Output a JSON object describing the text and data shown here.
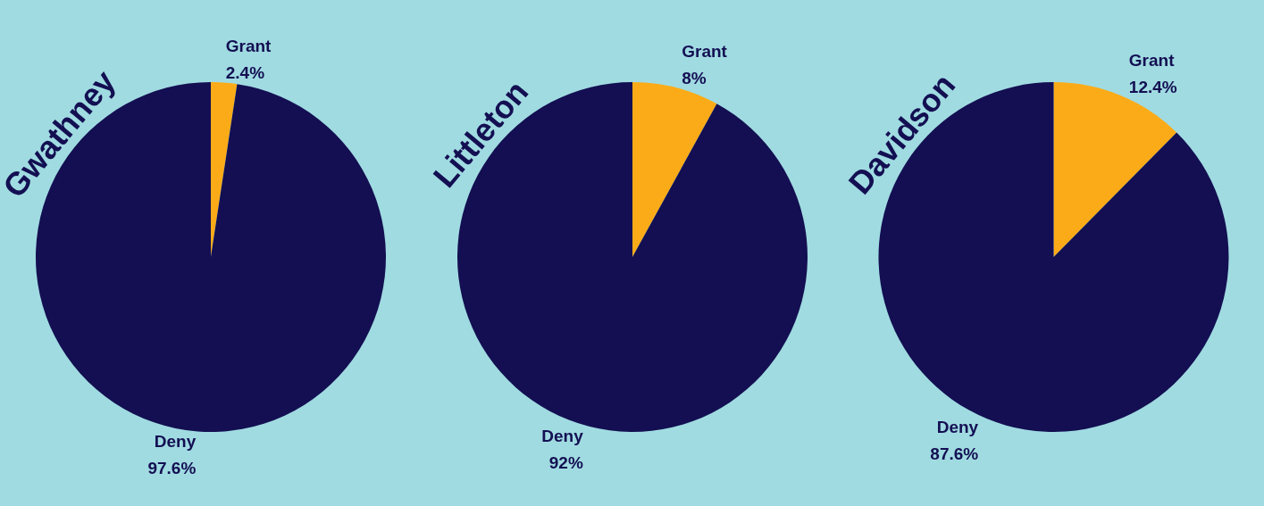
{
  "chart_data": [
    {
      "type": "pie",
      "title": "Gwathney",
      "categories": [
        "Grant",
        "Deny"
      ],
      "values": [
        2.4,
        97.6
      ],
      "colors": [
        "#fbab18",
        "#130f52"
      ],
      "value_labels": [
        "2.4%",
        "97.6%"
      ]
    },
    {
      "type": "pie",
      "title": "Littleton",
      "categories": [
        "Grant",
        "Deny"
      ],
      "values": [
        8,
        92
      ],
      "colors": [
        "#fbab18",
        "#130f52"
      ],
      "value_labels": [
        "8%",
        "92%"
      ]
    },
    {
      "type": "pie",
      "title": "Davidson",
      "categories": [
        "Grant",
        "Deny"
      ],
      "values": [
        12.4,
        87.6
      ],
      "colors": [
        "#fbab18",
        "#130f52"
      ],
      "value_labels": [
        "12.4%",
        "87.6%"
      ]
    }
  ]
}
